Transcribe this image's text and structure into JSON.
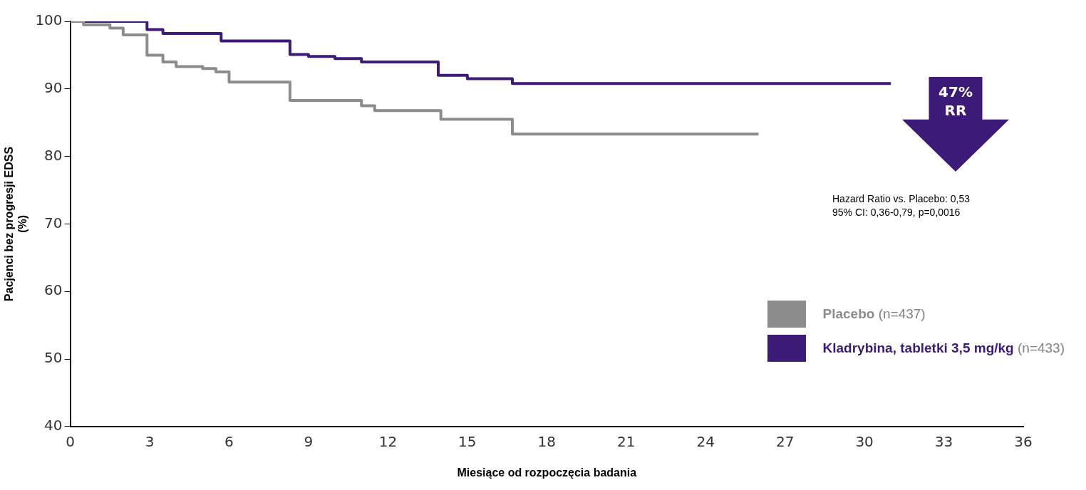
{
  "chart_data": {
    "type": "step",
    "xlabel": "Miesiące od rozpoczęcia badania",
    "ylabel": "Pacjenci bez progresji EDSS\n(%)",
    "xlim": [
      0,
      36
    ],
    "xticks": [
      0,
      3,
      6,
      9,
      12,
      15,
      18,
      21,
      24,
      27,
      30,
      33,
      36
    ],
    "ylim": [
      40,
      100
    ],
    "yticks": [
      40,
      50,
      60,
      70,
      80,
      90,
      100
    ],
    "grid": false,
    "legend": "bottom right",
    "line_style": "solid",
    "marker": "none",
    "series": [
      {
        "name": "Placebo (n=437)",
        "color": "#8c8c8c",
        "x": [
          0,
          0.5,
          1.5,
          2,
          2.9,
          3.5,
          4,
          5,
          5.5,
          6,
          8.3,
          11,
          11.5,
          14,
          16.7,
          26
        ],
        "values": [
          100,
          99.5,
          99,
          98,
          95,
          94,
          93.3,
          93,
          92.5,
          91,
          88.3,
          87.5,
          86.8,
          85.5,
          83.3,
          83.3
        ]
      },
      {
        "name": "Kladrybina, tabletki 3,5 mg/kg (n=433)",
        "color": "#3c1a78",
        "x": [
          0,
          2.9,
          3.5,
          5.7,
          8.3,
          9,
          10,
          11,
          13.9,
          15,
          16.7,
          31
        ],
        "values": [
          100,
          98.8,
          98.2,
          97.1,
          95.1,
          94.8,
          94.5,
          94,
          92,
          91.5,
          90.8,
          90.8
        ]
      }
    ],
    "annotations": [
      "47%\nRR",
      "Hazard Ratio vs. Placebo: 0,53\n95% CI: 0,36-0,79, p=0,0016"
    ]
  }
}
